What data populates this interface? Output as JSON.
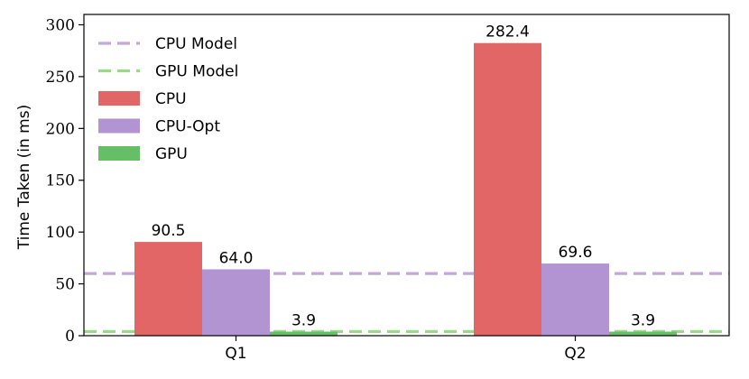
{
  "chart_data": {
    "type": "bar",
    "categories": [
      "Q1",
      "Q2"
    ],
    "series": [
      {
        "name": "CPU",
        "values": [
          90.5,
          282.4
        ],
        "labels": [
          "90.5",
          "282.4"
        ],
        "color": "#e36666"
      },
      {
        "name": "CPU-Opt",
        "values": [
          64.0,
          69.6
        ],
        "labels": [
          "64.0",
          "69.6"
        ],
        "color": "#b294d3"
      },
      {
        "name": "GPU",
        "values": [
          3.9,
          3.9
        ],
        "labels": [
          "3.9",
          "3.9"
        ],
        "color": "#66bf66"
      }
    ],
    "reference_lines": [
      {
        "name": "CPU Model",
        "value": 60,
        "color": "#c4a8dc",
        "style": "dashed"
      },
      {
        "name": "GPU Model",
        "value": 4,
        "color": "#9ad98a",
        "style": "dashed"
      }
    ],
    "legend": [
      "CPU Model",
      "GPU Model",
      "CPU",
      "CPU-Opt",
      "GPU"
    ],
    "legend_position": "top-left",
    "title": "",
    "xlabel": "",
    "ylabel": "Time Taken (in ms)",
    "ylim": [
      0,
      310
    ],
    "yticks": [
      0,
      50,
      100,
      150,
      200,
      250,
      300
    ],
    "grid": false
  }
}
